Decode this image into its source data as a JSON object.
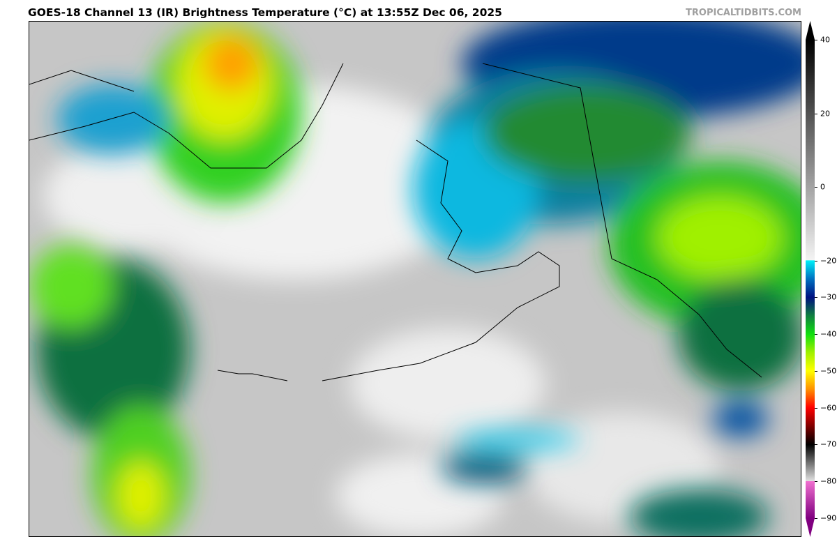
{
  "header": {
    "title": "GOES-18 Channel 13 (IR) Brightness Temperature (°C) at 13:55Z Dec 06, 2025",
    "credit": "TROPICALTIDBITS.COM"
  },
  "colorbar": {
    "unit": "°C",
    "range": [
      -90,
      40
    ],
    "ticks": [
      "40",
      "20",
      "0",
      "−20",
      "−30",
      "−40",
      "−50",
      "−60",
      "−70",
      "−80",
      "−90"
    ],
    "tick_values": [
      40,
      20,
      0,
      -20,
      -30,
      -40,
      -50,
      -60,
      -70,
      -80,
      -90
    ],
    "extend": "both",
    "stops": [
      {
        "value": 40,
        "color": "#000000"
      },
      {
        "value": -19.9,
        "color": "#f4f4f4"
      },
      {
        "value": -20,
        "color": "#00f0f8"
      },
      {
        "value": -25,
        "color": "#0070c0"
      },
      {
        "value": -30,
        "color": "#001080"
      },
      {
        "value": -35,
        "color": "#108040"
      },
      {
        "value": -40,
        "color": "#10e010"
      },
      {
        "value": -45,
        "color": "#a0f000"
      },
      {
        "value": -50,
        "color": "#ffff00"
      },
      {
        "value": -55,
        "color": "#ff9000"
      },
      {
        "value": -60,
        "color": "#ff0000"
      },
      {
        "value": -65,
        "color": "#800000"
      },
      {
        "value": -70,
        "color": "#000000"
      },
      {
        "value": -79.9,
        "color": "#e0e0e0"
      },
      {
        "value": -80,
        "color": "#f070d0"
      },
      {
        "value": -90,
        "color": "#800080"
      }
    ]
  },
  "map": {
    "region": "Alaska, Bering Sea, North Pacific",
    "background_color": "#c9c9c9"
  }
}
